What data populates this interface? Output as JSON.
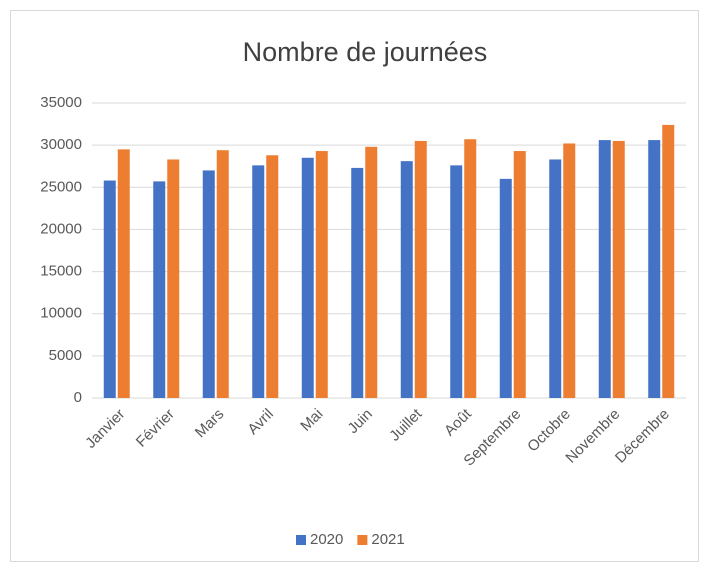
{
  "chart_data": {
    "type": "bar",
    "title": "Nombre de journées",
    "categories": [
      "Janvier",
      "Février",
      "Mars",
      "Avril",
      "Mai",
      "Juin",
      "Juillet",
      "Août",
      "Septembre",
      "Octobre",
      "Novembre",
      "Décembre"
    ],
    "series": [
      {
        "name": "2020",
        "color": "#4472c4",
        "values": [
          25800,
          25700,
          27000,
          27600,
          28500,
          27300,
          28100,
          27600,
          26000,
          28300,
          30600,
          30600
        ]
      },
      {
        "name": "2021",
        "color": "#ed7d31",
        "values": [
          29500,
          28300,
          29400,
          28800,
          29300,
          29800,
          30500,
          30700,
          29300,
          30200,
          30500,
          32400
        ]
      }
    ],
    "ylim": [
      0,
      35000
    ],
    "yticks": [
      0,
      5000,
      10000,
      15000,
      20000,
      25000,
      30000,
      35000
    ],
    "grid": true,
    "legend": "bottom"
  }
}
